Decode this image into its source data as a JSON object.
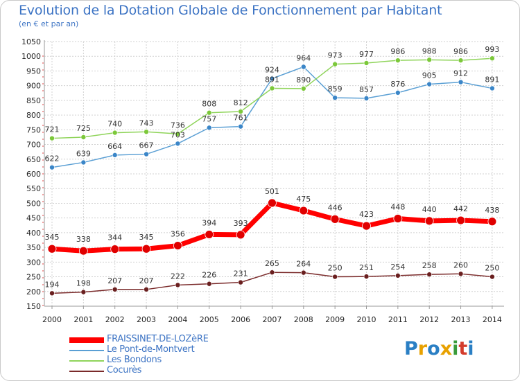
{
  "title": "Evolution de la Dotation Globale de Fonctionnement par Habitant",
  "subtitle": "(en € et par an)",
  "logo": {
    "text": "Proxiti",
    "colors": [
      "#2a7fc4",
      "#e8a100",
      "#2a7fc4",
      "#e8a100",
      "#3a9b3a",
      "#d43c2c",
      "#2a7fc4"
    ]
  },
  "chart_data": {
    "type": "line",
    "x": [
      "2000",
      "2001",
      "2002",
      "2003",
      "2004",
      "2005",
      "2006",
      "2007",
      "2008",
      "2009",
      "2010",
      "2011",
      "2012",
      "2013",
      "2014"
    ],
    "ylim": [
      150,
      1050
    ],
    "yticks": [
      150,
      200,
      250,
      300,
      350,
      400,
      450,
      500,
      550,
      600,
      650,
      700,
      750,
      800,
      850,
      900,
      950,
      1000,
      1050
    ],
    "grid": true,
    "legend_position": "bottom-left",
    "series": [
      {
        "name": "FRAISSINET-DE-LOZèRE",
        "color": "#ff0000",
        "marker_color": "#e00000",
        "line_width": 7,
        "marker_radius": 6,
        "values": [
          345,
          338,
          344,
          345,
          356,
          394,
          393,
          501,
          475,
          446,
          423,
          448,
          440,
          442,
          438
        ]
      },
      {
        "name": "Le Pont-de-Montvert",
        "color": "#5a9fd4",
        "marker_color": "#3b86c8",
        "line_width": 1.5,
        "marker_radius": 3.5,
        "values": [
          622,
          639,
          664,
          667,
          703,
          757,
          761,
          924,
          964,
          859,
          857,
          876,
          905,
          912,
          891
        ]
      },
      {
        "name": "Les Bondons",
        "color": "#8fd45a",
        "marker_color": "#7cc83a",
        "line_width": 1.5,
        "marker_radius": 3.5,
        "values": [
          721,
          725,
          740,
          743,
          736,
          808,
          812,
          891,
          890,
          973,
          977,
          986,
          988,
          986,
          993
        ]
      },
      {
        "name": "Cocurès",
        "color": "#7a2a2a",
        "marker_color": "#6a1f1f",
        "line_width": 1.5,
        "marker_radius": 3.5,
        "values": [
          194,
          198,
          207,
          207,
          222,
          226,
          231,
          265,
          264,
          250,
          251,
          254,
          258,
          260,
          250
        ]
      }
    ]
  }
}
